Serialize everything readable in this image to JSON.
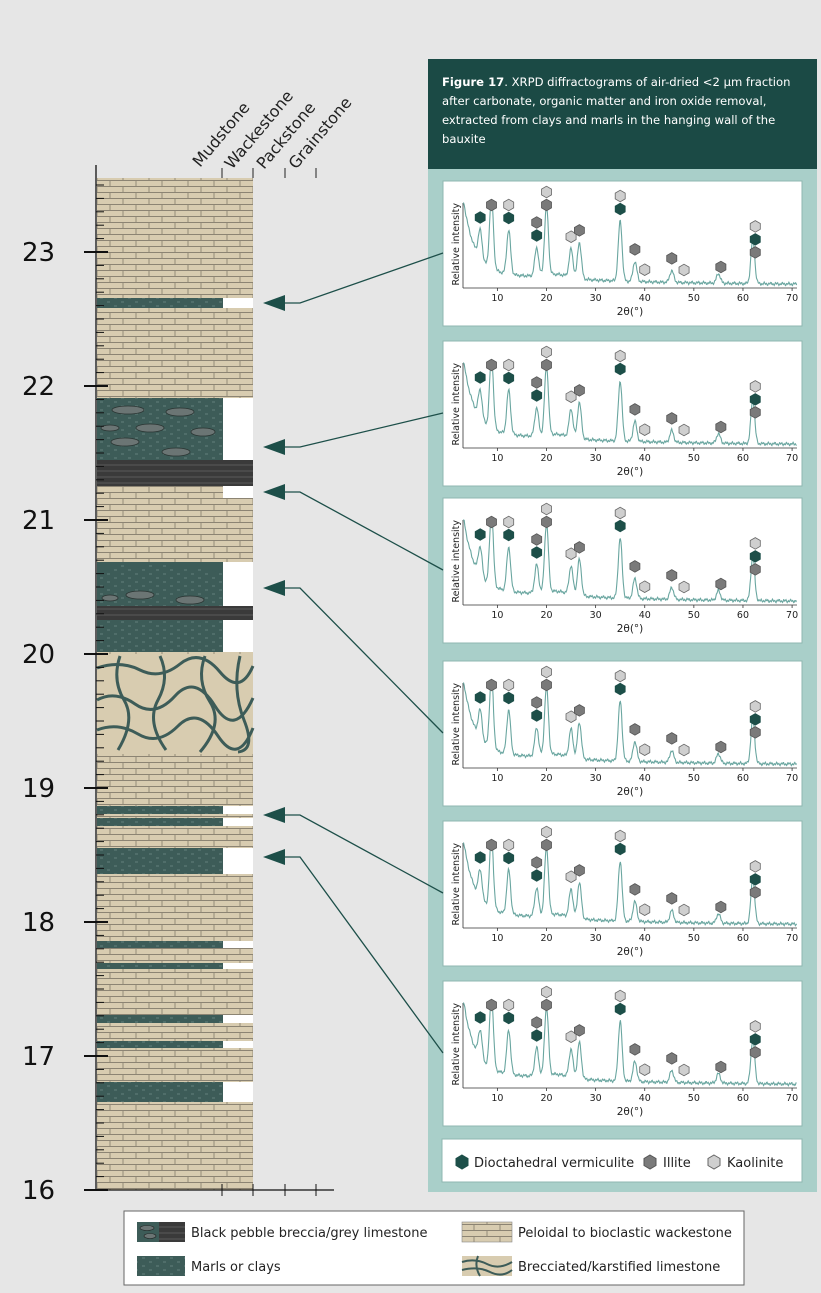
{
  "figure": {
    "label": "Figure 17",
    "caption": ". XRPD diffractograms of air-dried <2 µm fraction after carbonate, organic matter and iron oxide removal, extracted from clays and marls in the hanging wall of the bauxite"
  },
  "column": {
    "texture_labels": [
      "Mudstone",
      "Wackestone",
      "Packstone",
      "Grainstone"
    ],
    "depth_ticks": [
      "23",
      "22",
      "21",
      "20",
      "19",
      "18",
      "17",
      "16"
    ],
    "depth_range": [
      16,
      23.5
    ]
  },
  "diffractograms": {
    "ylabel": "Relative intensity",
    "xlabel": "2θ(°)",
    "x_ticks": [
      "10",
      "20",
      "30",
      "40",
      "50",
      "60",
      "70"
    ],
    "x_range": [
      3,
      71
    ],
    "count": 6
  },
  "mineral_legend": [
    {
      "label": "Dioctahedral vermiculite",
      "color": "#1d4f49"
    },
    {
      "label": "Illite",
      "color": "#7a7a7a"
    },
    {
      "label": "Kaolinite",
      "color": "#cfcfcf"
    }
  ],
  "lithology_legend": [
    {
      "label": "Black pebble breccia/grey limestone"
    },
    {
      "label": "Peloidal to bioclastic wackestone"
    },
    {
      "label": "Marls or clays"
    },
    {
      "label": "Brecciated/karstified limestone"
    }
  ],
  "colors": {
    "limestone": "#d8ccb0",
    "marl": "#3d5c58",
    "dark_band": "#3a3a3a",
    "panel_bg": "#a9cfc9",
    "caption_bg": "#1b4a45",
    "arrow": "#1d4f49",
    "trace": "#6aa6a0"
  }
}
